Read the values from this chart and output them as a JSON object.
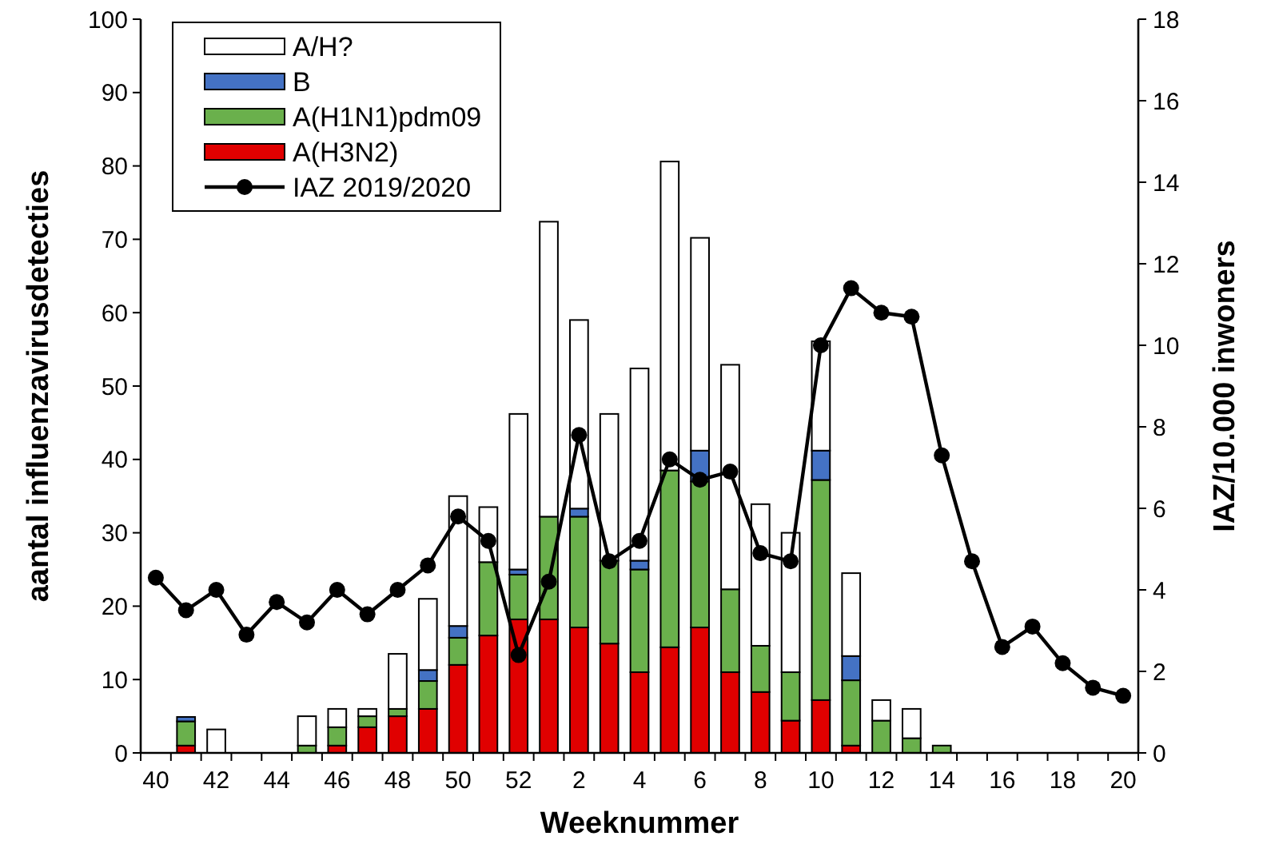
{
  "chart_data": {
    "type": "bar",
    "stacked": true,
    "xlabel": "Weeknummer",
    "ylabel": "aantal influenzavirusdetecties",
    "y2label": "IAZ/10.000 inwoners",
    "categories": [
      "40",
      null,
      "42",
      null,
      "44",
      null,
      "46",
      null,
      "48",
      null,
      "50",
      null,
      "52",
      null,
      "2",
      null,
      "4",
      null,
      "6",
      null,
      "8",
      null,
      "10",
      null,
      "12",
      null,
      "14",
      null,
      "16",
      null,
      "18",
      null,
      "20"
    ],
    "series": [
      {
        "name": "A(H3N2)",
        "color": "#e00000",
        "values": [
          0,
          1,
          0,
          0,
          0,
          0,
          1,
          3.5,
          5,
          6,
          12,
          16,
          18.2,
          18.2,
          17.1,
          14.9,
          11,
          14.4,
          17.1,
          11,
          8.3,
          4.4,
          7.2,
          1,
          0,
          0,
          0,
          0,
          0,
          0,
          0,
          0,
          0
        ]
      },
      {
        "name": "A(H1N1)pdm09",
        "color": "#6ab04c",
        "values": [
          0,
          3.3,
          0,
          0,
          0,
          1,
          2.5,
          1.5,
          1,
          3.8,
          3.7,
          10,
          6.1,
          14,
          15.1,
          11.3,
          14,
          24.1,
          19.9,
          11.3,
          6.3,
          6.6,
          30,
          8.9,
          4.4,
          2,
          1,
          0,
          0,
          0,
          0,
          0,
          0
        ]
      },
      {
        "name": "B",
        "color": "#4472c4",
        "values": [
          0,
          0.6,
          0,
          0,
          0,
          0,
          0,
          0,
          0,
          1.5,
          1.6,
          null,
          0.7,
          0,
          1.1,
          0,
          1.2,
          null,
          4.2,
          0,
          0,
          0,
          4,
          3.3,
          0,
          0,
          0,
          0,
          0,
          0,
          0,
          0,
          0
        ]
      },
      {
        "name": "A/H?",
        "color": "#ffffff",
        "values": [
          0,
          0,
          3.2,
          0,
          0,
          4,
          2.5,
          1,
          7.5,
          9.7,
          17.7,
          7.5,
          21.2,
          40.2,
          25.7,
          20,
          26.2,
          42.1,
          29,
          30.6,
          19.3,
          19,
          14.9,
          11.3,
          2.8,
          4,
          0,
          0,
          0,
          0,
          0,
          0,
          0
        ]
      },
      {
        "name": "IAZ 2019/2020",
        "type": "line",
        "axis": "y2",
        "color": "#000000",
        "marker": "circle",
        "values": [
          4.3,
          3.5,
          4.0,
          2.9,
          3.7,
          3.2,
          4.0,
          3.4,
          4.0,
          4.6,
          5.8,
          5.2,
          2.4,
          4.2,
          7.8,
          4.7,
          5.2,
          7.2,
          6.7,
          6.9,
          4.9,
          4.7,
          10.0,
          11.4,
          10.8,
          10.7,
          7.3,
          4.7,
          2.6,
          3.1,
          2.2,
          1.6,
          1.4
        ]
      }
    ],
    "ylim": [
      0,
      100
    ],
    "yticks": [
      0,
      10,
      20,
      30,
      40,
      50,
      60,
      70,
      80,
      90,
      100
    ],
    "y2lim": [
      0,
      18
    ],
    "y2ticks": [
      0,
      2,
      4,
      6,
      8,
      10,
      12,
      14,
      16,
      18
    ],
    "legend": "top left",
    "grid": false
  }
}
